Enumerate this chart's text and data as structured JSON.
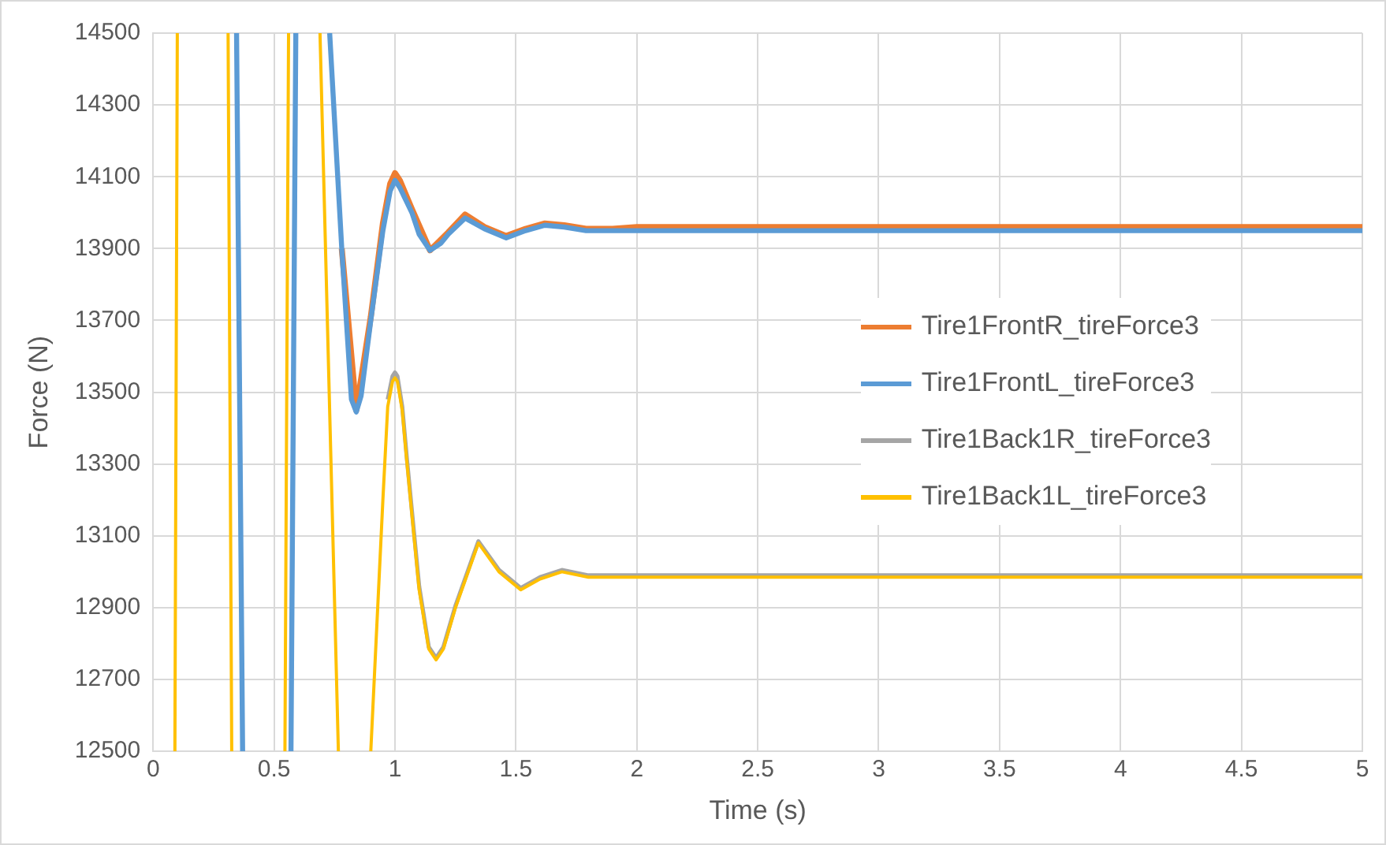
{
  "chart_data": {
    "type": "line",
    "xlabel": "Time (s)",
    "ylabel": "Force (N)",
    "xlim": [
      0,
      5
    ],
    "xticks": [
      0,
      0.5,
      1,
      1.5,
      2,
      2.5,
      3,
      3.5,
      4,
      4.5,
      5
    ],
    "ylim": [
      12500,
      14500
    ],
    "yticks": [
      12500,
      12700,
      12900,
      13100,
      13300,
      13500,
      13700,
      13900,
      14100,
      14300,
      14500
    ],
    "grid": true,
    "legend": "right",
    "marker": "none",
    "line_style": "solid",
    "series": [
      {
        "name": "Tire1FrontR_tireForce3",
        "color": "#ed7d31",
        "x": [
          0.78,
          0.84,
          0.9,
          0.95,
          0.98,
          1.0,
          1.02,
          1.07,
          1.145,
          1.22,
          1.29,
          1.37,
          1.46,
          1.54,
          1.62,
          1.7,
          1.79,
          1.9,
          2,
          5
        ],
        "values": [
          13900,
          13450,
          13710,
          13970,
          14080,
          14110,
          14090,
          14010,
          13895,
          13945,
          13995,
          13960,
          13935,
          13955,
          13970,
          13965,
          13955,
          13955,
          13960,
          13960
        ]
      },
      {
        "name": "Tire1FrontL_tireForce3",
        "color": "#5b9bd5",
        "x": [
          0.345,
          0.37,
          0.47,
          0.57,
          0.59,
          0.66,
          0.73,
          0.78,
          0.82,
          0.84,
          0.86,
          0.9,
          0.95,
          0.98,
          1.0,
          1.02,
          1.07,
          1.1,
          1.145,
          1.19,
          1.22,
          1.29,
          1.37,
          1.46,
          1.54,
          1.62,
          1.7,
          1.79,
          1.9,
          2,
          5
        ],
        "values": [
          14500,
          12500,
          null,
          12500,
          14500,
          null,
          14500,
          13900,
          13480,
          13445,
          13490,
          13700,
          13950,
          14060,
          14090,
          14070,
          14000,
          13940,
          13895,
          13915,
          13940,
          13985,
          13955,
          13930,
          13950,
          13965,
          13960,
          13950,
          13950,
          13950,
          13950
        ]
      },
      {
        "name": "Tire1Back1R_tireForce3",
        "color": "#a5a5a5",
        "x": [
          0.97,
          0.99,
          1.0,
          1.01,
          1.03,
          1.05,
          1.1,
          1.14,
          1.17,
          1.2,
          1.25,
          1.345,
          1.43,
          1.52,
          1.6,
          1.69,
          1.8,
          2,
          5
        ],
        "values": [
          13480,
          13545,
          13555,
          13545,
          13460,
          13310,
          12960,
          12790,
          12760,
          12790,
          12905,
          13085,
          13005,
          12955,
          12985,
          13005,
          12990,
          12990,
          12990
        ]
      },
      {
        "name": "Tire1Back1L_tireForce3",
        "color": "#ffc000",
        "x": [
          0.09,
          0.1,
          0.2,
          0.31,
          0.325,
          0.43,
          0.545,
          0.56,
          0.62,
          0.69,
          0.766,
          0.83,
          0.9,
          0.95,
          0.97,
          0.99,
          1.0,
          1.01,
          1.03,
          1.05,
          1.1,
          1.14,
          1.17,
          1.2,
          1.25,
          1.345,
          1.43,
          1.52,
          1.6,
          1.69,
          1.8,
          2,
          5
        ],
        "values": [
          12500,
          14500,
          null,
          14500,
          12500,
          null,
          12500,
          14500,
          null,
          14500,
          12500,
          null,
          12500,
          13200,
          13460,
          13530,
          13540,
          13530,
          13450,
          13300,
          12950,
          12785,
          12755,
          12785,
          12900,
          13080,
          13000,
          12950,
          12980,
          13000,
          12985,
          12985,
          12985
        ]
      }
    ]
  }
}
